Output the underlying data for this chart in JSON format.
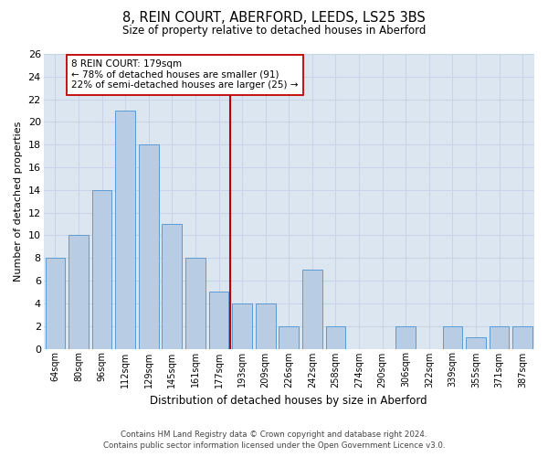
{
  "title": "8, REIN COURT, ABERFORD, LEEDS, LS25 3BS",
  "subtitle": "Size of property relative to detached houses in Aberford",
  "xlabel": "Distribution of detached houses by size in Aberford",
  "ylabel": "Number of detached properties",
  "categories": [
    "64sqm",
    "80sqm",
    "96sqm",
    "112sqm",
    "129sqm",
    "145sqm",
    "161sqm",
    "177sqm",
    "193sqm",
    "209sqm",
    "226sqm",
    "242sqm",
    "258sqm",
    "274sqm",
    "290sqm",
    "306sqm",
    "322sqm",
    "339sqm",
    "355sqm",
    "371sqm",
    "387sqm"
  ],
  "values": [
    8,
    10,
    14,
    21,
    18,
    11,
    8,
    5,
    4,
    4,
    2,
    7,
    2,
    0,
    0,
    2,
    0,
    2,
    1,
    2,
    2
  ],
  "bar_color": "#b8cce4",
  "bar_edge_color": "#5b9bd5",
  "grid_color": "#c8d4e8",
  "background_color": "#dce6f1",
  "ylim": [
    0,
    26
  ],
  "yticks": [
    0,
    2,
    4,
    6,
    8,
    10,
    12,
    14,
    16,
    18,
    20,
    22,
    24,
    26
  ],
  "vline_color": "#c00000",
  "vline_index": 7.5,
  "annotation_text": "8 REIN COURT: 179sqm\n← 78% of detached houses are smaller (91)\n22% of semi-detached houses are larger (25) →",
  "annotation_box_color": "#ffffff",
  "annotation_box_edge": "#c00000",
  "footer1": "Contains HM Land Registry data © Crown copyright and database right 2024.",
  "footer2": "Contains public sector information licensed under the Open Government Licence v3.0."
}
